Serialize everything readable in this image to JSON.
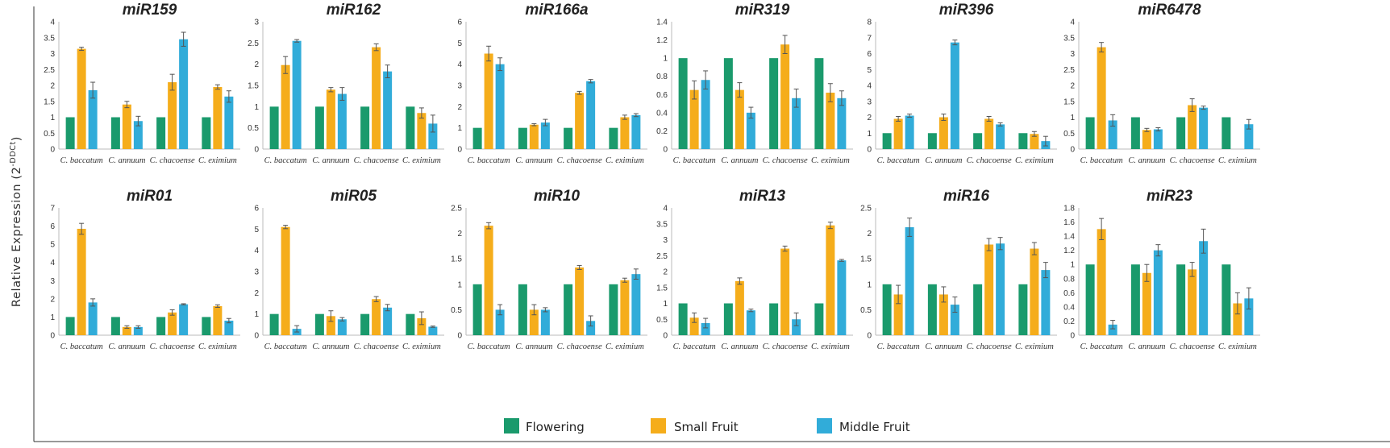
{
  "figure": {
    "ylabel": "Relative Expression (2",
    "ylabel_sup": "-DDCt",
    "ylabel_close": ")"
  },
  "colors": {
    "Flowering": "#1a9a6c",
    "Small Fruit": "#f5ad1b",
    "Middle Fruit": "#31acd9"
  },
  "chart_data": [
    {
      "type": "bar",
      "title": "miR159",
      "categories": [
        "C. baccatum",
        "C. annuum",
        "C. chacoense",
        "C. eximium"
      ],
      "yticks": [
        0,
        0.5,
        1,
        1.5,
        2,
        2.5,
        3,
        3.5,
        4
      ],
      "ylim": [
        0,
        4
      ],
      "series": [
        {
          "name": "Flowering",
          "values": [
            1,
            1,
            1,
            1
          ],
          "errors": [
            0,
            0,
            0,
            0
          ]
        },
        {
          "name": "Small Fruit",
          "values": [
            3.15,
            1.4,
            2.1,
            1.95
          ],
          "errors": [
            0.05,
            0.1,
            0.25,
            0.07
          ]
        },
        {
          "name": "Middle Fruit",
          "values": [
            1.85,
            0.88,
            3.45,
            1.65
          ],
          "errors": [
            0.25,
            0.15,
            0.22,
            0.18
          ]
        }
      ]
    },
    {
      "type": "bar",
      "title": "miR162",
      "categories": [
        "C. baccatum",
        "C. annuum",
        "C. chacoense",
        "C. eximium"
      ],
      "yticks": [
        0,
        0.5,
        1,
        1.5,
        2,
        2.5,
        3
      ],
      "ylim": [
        0,
        3
      ],
      "series": [
        {
          "name": "Flowering",
          "values": [
            1,
            1,
            1,
            1
          ],
          "errors": [
            0,
            0,
            0,
            0
          ]
        },
        {
          "name": "Small Fruit",
          "values": [
            1.98,
            1.4,
            2.4,
            0.85
          ],
          "errors": [
            0.2,
            0.05,
            0.08,
            0.12
          ]
        },
        {
          "name": "Middle Fruit",
          "values": [
            2.55,
            1.3,
            1.83,
            0.6
          ],
          "errors": [
            0.03,
            0.15,
            0.15,
            0.2
          ]
        }
      ]
    },
    {
      "type": "bar",
      "title": "miR166a",
      "categories": [
        "C. baccatum",
        "C. annuum",
        "C. chacoense",
        "C. eximium"
      ],
      "yticks": [
        0,
        1,
        2,
        3,
        4,
        5,
        6
      ],
      "ylim": [
        0,
        6
      ],
      "series": [
        {
          "name": "Flowering",
          "values": [
            1,
            1,
            1,
            1
          ],
          "errors": [
            0,
            0,
            0,
            0
          ]
        },
        {
          "name": "Small Fruit",
          "values": [
            4.5,
            1.15,
            2.65,
            1.5
          ],
          "errors": [
            0.35,
            0.05,
            0.07,
            0.1
          ]
        },
        {
          "name": "Middle Fruit",
          "values": [
            4.0,
            1.25,
            3.2,
            1.6
          ],
          "errors": [
            0.3,
            0.15,
            0.08,
            0.07
          ]
        }
      ]
    },
    {
      "type": "bar",
      "title": "miR319",
      "categories": [
        "C. baccatum",
        "C. annuum",
        "C. chacoense",
        "C. eximium"
      ],
      "yticks": [
        0,
        0.2,
        0.4,
        0.6,
        0.8,
        1,
        1.2,
        1.4
      ],
      "ylim": [
        0,
        1.4
      ],
      "series": [
        {
          "name": "Flowering",
          "values": [
            1,
            1,
            1,
            1
          ],
          "errors": [
            0,
            0,
            0,
            0
          ]
        },
        {
          "name": "Small Fruit",
          "values": [
            0.65,
            0.65,
            1.15,
            0.62
          ],
          "errors": [
            0.1,
            0.08,
            0.1,
            0.1
          ]
        },
        {
          "name": "Middle Fruit",
          "values": [
            0.76,
            0.4,
            0.56,
            0.56
          ],
          "errors": [
            0.1,
            0.06,
            0.1,
            0.08
          ]
        }
      ]
    },
    {
      "type": "bar",
      "title": "miR396",
      "categories": [
        "C. baccatum",
        "C. annuum",
        "C. chacoense",
        "C. eximium"
      ],
      "yticks": [
        0,
        1,
        2,
        3,
        4,
        5,
        6,
        7,
        8
      ],
      "ylim": [
        0,
        8
      ],
      "series": [
        {
          "name": "Flowering",
          "values": [
            1,
            1,
            1,
            1
          ],
          "errors": [
            0,
            0,
            0,
            0
          ]
        },
        {
          "name": "Small Fruit",
          "values": [
            1.9,
            2.0,
            1.9,
            0.95
          ],
          "errors": [
            0.15,
            0.2,
            0.15,
            0.15
          ]
        },
        {
          "name": "Middle Fruit",
          "values": [
            2.1,
            6.7,
            1.55,
            0.5
          ],
          "errors": [
            0.1,
            0.15,
            0.1,
            0.3
          ]
        }
      ]
    },
    {
      "type": "bar",
      "title": "miR6478",
      "categories": [
        "C. baccatum",
        "C. annuum",
        "C. chacoense",
        "C. eximium"
      ],
      "yticks": [
        0,
        0.5,
        1,
        1.5,
        2,
        2.5,
        3,
        3.5,
        4
      ],
      "ylim": [
        0,
        4
      ],
      "series": [
        {
          "name": "Flowering",
          "values": [
            1,
            1,
            1,
            1
          ],
          "errors": [
            0,
            0,
            0,
            0
          ]
        },
        {
          "name": "Small Fruit",
          "values": [
            3.2,
            0.6,
            1.38,
            0
          ],
          "errors": [
            0.15,
            0.05,
            0.2,
            0
          ]
        },
        {
          "name": "Middle Fruit",
          "values": [
            0.9,
            0.62,
            1.3,
            0.78
          ],
          "errors": [
            0.18,
            0.05,
            0.05,
            0.15
          ]
        }
      ]
    },
    {
      "type": "bar",
      "title": "miR01",
      "categories": [
        "C. baccatum",
        "C. annuum",
        "C. chacoense",
        "C. eximium"
      ],
      "yticks": [
        0,
        1,
        2,
        3,
        4,
        5,
        6,
        7
      ],
      "ylim": [
        0,
        7
      ],
      "series": [
        {
          "name": "Flowering",
          "values": [
            1,
            1,
            1,
            1
          ],
          "errors": [
            0,
            0,
            0,
            0
          ]
        },
        {
          "name": "Small Fruit",
          "values": [
            5.85,
            0.45,
            1.25,
            1.6
          ],
          "errors": [
            0.3,
            0.07,
            0.15,
            0.07
          ]
        },
        {
          "name": "Middle Fruit",
          "values": [
            1.8,
            0.45,
            1.7,
            0.8
          ],
          "errors": [
            0.2,
            0.07,
            0.03,
            0.12
          ]
        }
      ]
    },
    {
      "type": "bar",
      "title": "miR05",
      "categories": [
        "C. baccatum",
        "C. annuum",
        "C. chacoense",
        "C. eximium"
      ],
      "yticks": [
        0,
        1,
        2,
        3,
        4,
        5,
        6
      ],
      "ylim": [
        0,
        6
      ],
      "series": [
        {
          "name": "Flowering",
          "values": [
            1,
            1,
            1,
            1
          ],
          "errors": [
            0,
            0,
            0,
            0
          ]
        },
        {
          "name": "Small Fruit",
          "values": [
            5.1,
            0.9,
            1.7,
            0.8
          ],
          "errors": [
            0.08,
            0.25,
            0.12,
            0.3
          ]
        },
        {
          "name": "Middle Fruit",
          "values": [
            0.3,
            0.75,
            1.3,
            0.4
          ],
          "errors": [
            0.15,
            0.08,
            0.15,
            0.03
          ]
        }
      ]
    },
    {
      "type": "bar",
      "title": "miR10",
      "categories": [
        "C. baccatum",
        "C. annuum",
        "C. chacoense",
        "C. eximium"
      ],
      "yticks": [
        0,
        0.5,
        1,
        1.5,
        2,
        2.5
      ],
      "ylim": [
        0,
        2.5
      ],
      "series": [
        {
          "name": "Flowering",
          "values": [
            1,
            1,
            1,
            1
          ],
          "errors": [
            0,
            0,
            0,
            0
          ]
        },
        {
          "name": "Small Fruit",
          "values": [
            2.15,
            0.5,
            1.33,
            1.08
          ],
          "errors": [
            0.06,
            0.1,
            0.04,
            0.04
          ]
        },
        {
          "name": "Middle Fruit",
          "values": [
            0.5,
            0.5,
            0.28,
            1.2
          ],
          "errors": [
            0.1,
            0.04,
            0.1,
            0.1
          ]
        }
      ]
    },
    {
      "type": "bar",
      "title": "miR13",
      "categories": [
        "C. baccatum",
        "C. annuum",
        "C. chacoense",
        "C. eximium"
      ],
      "yticks": [
        0,
        0.5,
        1,
        1.5,
        2,
        2.5,
        3,
        3.5,
        4
      ],
      "ylim": [
        0,
        4
      ],
      "series": [
        {
          "name": "Flowering",
          "values": [
            1,
            1,
            1,
            1
          ],
          "errors": [
            0,
            0,
            0,
            0
          ]
        },
        {
          "name": "Small Fruit",
          "values": [
            0.55,
            1.7,
            2.72,
            3.45
          ],
          "errors": [
            0.15,
            0.1,
            0.08,
            0.1
          ]
        },
        {
          "name": "Middle Fruit",
          "values": [
            0.38,
            0.78,
            0.5,
            2.35
          ],
          "errors": [
            0.15,
            0.04,
            0.2,
            0.03
          ]
        }
      ]
    },
    {
      "type": "bar",
      "title": "miR16",
      "categories": [
        "C. baccatum",
        "C. annuum",
        "C. chacoense",
        "C. eximium"
      ],
      "yticks": [
        0,
        0.5,
        1,
        1.5,
        2,
        2.5
      ],
      "ylim": [
        0,
        2.5
      ],
      "series": [
        {
          "name": "Flowering",
          "values": [
            1,
            1,
            1,
            1
          ],
          "errors": [
            0,
            0,
            0,
            0
          ]
        },
        {
          "name": "Small Fruit",
          "values": [
            0.8,
            0.8,
            1.78,
            1.7
          ],
          "errors": [
            0.18,
            0.15,
            0.12,
            0.12
          ]
        },
        {
          "name": "Middle Fruit",
          "values": [
            2.12,
            0.6,
            1.8,
            1.28
          ],
          "errors": [
            0.18,
            0.15,
            0.12,
            0.15
          ]
        }
      ]
    },
    {
      "type": "bar",
      "title": "miR23",
      "categories": [
        "C. baccatum",
        "C. annuum",
        "C. chacoense",
        "C. eximium"
      ],
      "yticks": [
        0,
        0.2,
        0.4,
        0.6,
        0.8,
        1,
        1.2,
        1.4,
        1.6,
        1.8
      ],
      "ylim": [
        0,
        1.8
      ],
      "series": [
        {
          "name": "Flowering",
          "values": [
            1,
            1,
            1,
            1
          ],
          "errors": [
            0,
            0,
            0,
            0
          ]
        },
        {
          "name": "Small Fruit",
          "values": [
            1.5,
            0.88,
            0.93,
            0.45
          ],
          "errors": [
            0.15,
            0.12,
            0.1,
            0.15
          ]
        },
        {
          "name": "Middle Fruit",
          "values": [
            0.15,
            1.2,
            1.33,
            0.52
          ],
          "errors": [
            0.06,
            0.08,
            0.17,
            0.15
          ]
        }
      ]
    }
  ],
  "legend": {
    "items": [
      "Flowering",
      "Small Fruit",
      "Middle Fruit"
    ]
  }
}
